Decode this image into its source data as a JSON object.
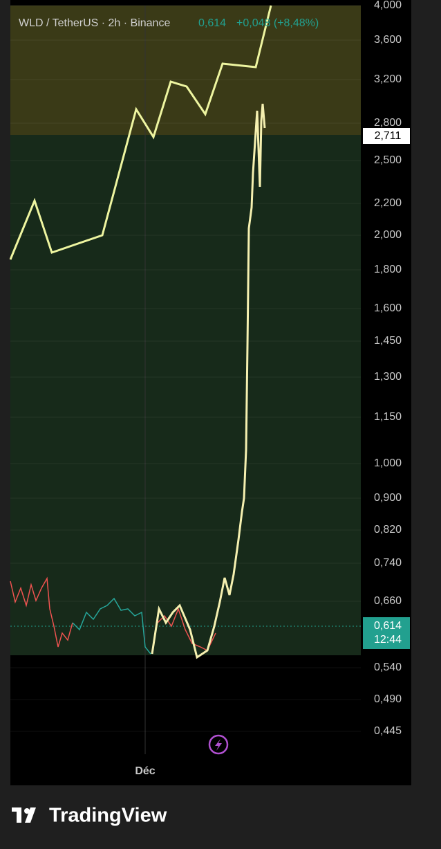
{
  "header": {
    "symbol": "WLD / TetherUS · 2h · Binance",
    "price": "0,614",
    "change": "+0,048 (+8,48%)"
  },
  "price_axis": [
    "4,000",
    "3,600",
    "3,200",
    "2,800",
    "2,500",
    "2,200",
    "2,000",
    "1,800",
    "1,600",
    "1,450",
    "1,300",
    "1,150",
    "1,000",
    "0,900",
    "0,820",
    "0,740",
    "0,660",
    "0,540",
    "0,490",
    "0,445"
  ],
  "drawing_price_tag": "2,711",
  "last_price_tag": {
    "price": "0,614",
    "countdown": "12:44"
  },
  "time_axis": [
    "Déc"
  ],
  "footer": {
    "brand": "TradingView"
  }
}
